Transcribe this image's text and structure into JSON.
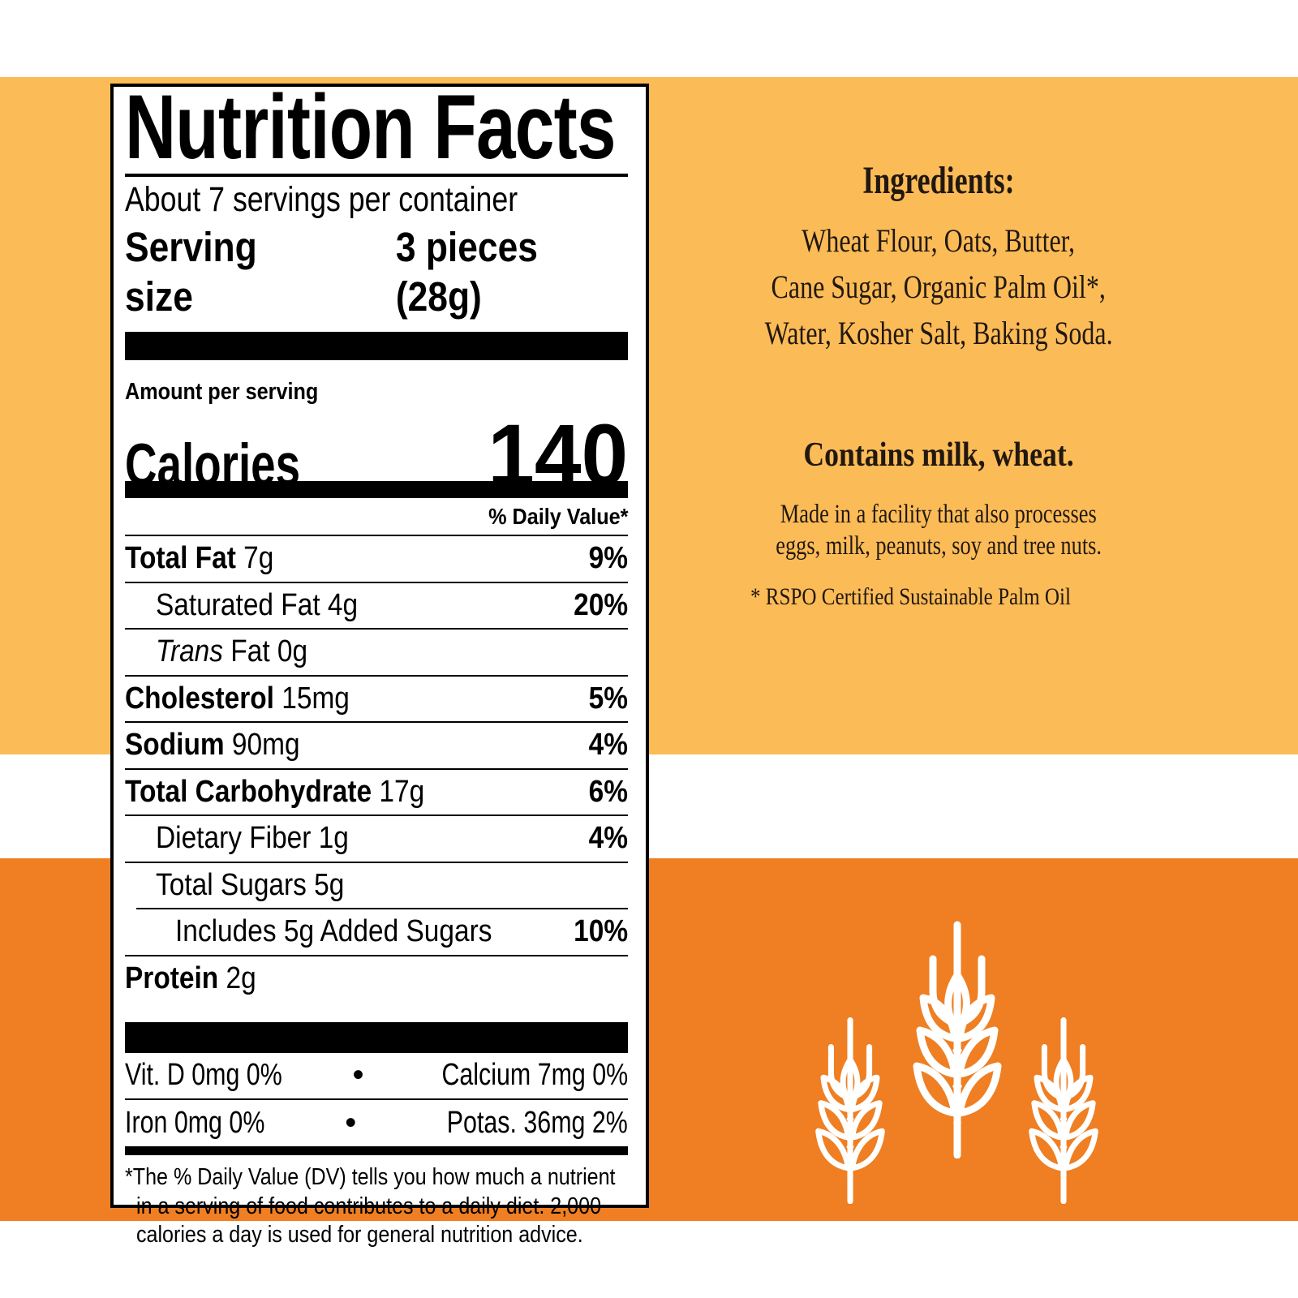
{
  "colors": {
    "band_light": "#FBBB57",
    "band_dark": "#EF7F22",
    "label_text": "#000000",
    "panel_text": "#211810",
    "wheat_icon": "#FFFFFF"
  },
  "label": {
    "title": "Nutrition Facts",
    "servings_per_container": "About 7 servings per container",
    "serving_size_label": "Serving size",
    "serving_size_value": "3 pieces (28g)",
    "amount_per_serving": "Amount per serving",
    "calories_label": "Calories",
    "calories_value": "140",
    "daily_value_header": "% Daily Value*",
    "rows": [
      {
        "bold": "Total Fat",
        "italic": "",
        "reg": " 7g",
        "dv": "9%",
        "indent": 0,
        "rule_indent": false
      },
      {
        "bold": "",
        "italic": "",
        "reg": "Saturated Fat 4g",
        "dv": "20%",
        "indent": 1,
        "rule_indent": false
      },
      {
        "bold": "",
        "italic": "Trans",
        "reg": " Fat 0g",
        "dv": "",
        "indent": 1,
        "rule_indent": false
      },
      {
        "bold": "Cholesterol",
        "italic": "",
        "reg": " 15mg",
        "dv": "5%",
        "indent": 0,
        "rule_indent": false
      },
      {
        "bold": "Sodium",
        "italic": "",
        "reg": " 90mg",
        "dv": "4%",
        "indent": 0,
        "rule_indent": false
      },
      {
        "bold": "Total Carbohydrate",
        "italic": "",
        "reg": " 17g",
        "dv": "6%",
        "indent": 0,
        "rule_indent": false
      },
      {
        "bold": "",
        "italic": "",
        "reg": "Dietary Fiber 1g",
        "dv": "4%",
        "indent": 1,
        "rule_indent": false
      },
      {
        "bold": "",
        "italic": "",
        "reg": "Total Sugars 5g",
        "dv": "",
        "indent": 1,
        "rule_indent": false
      },
      {
        "bold": "",
        "italic": "",
        "reg": "Includes 5g Added Sugars",
        "dv": "10%",
        "indent": 2,
        "rule_indent": true
      },
      {
        "bold": "Protein",
        "italic": "",
        "reg": " 2g",
        "dv": "",
        "indent": 0,
        "rule_indent": false
      }
    ],
    "micros": [
      {
        "left": "Vit. D 0mg 0%",
        "bullet": "•",
        "right": "Calcium 7mg 0%"
      },
      {
        "left": "Iron 0mg 0%",
        "bullet": "•",
        "right": "Potas. 36mg 2%"
      }
    ],
    "footnote_lines": [
      "*The % Daily Value (DV) tells you how much a nutrient",
      "in a serving of food contributes to a daily diet. 2,000",
      "calories a day is used for general nutrition advice."
    ]
  },
  "right_panel": {
    "ingredients_heading": "Ingredients:",
    "ingredients_lines": [
      "Wheat Flour, Oats, Butter,",
      "Cane Sugar, Organic Palm Oil*,",
      "Water, Kosher Salt, Baking Soda."
    ],
    "contains_statement": "Contains milk, wheat.",
    "facility_lines": [
      "Made in a facility that also processes",
      "eggs, milk, peanuts, soy and tree nuts."
    ],
    "rspo_note": "* RSPO Certified Sustainable Palm Oil"
  },
  "icons": {
    "wheat": "wheat-icon"
  }
}
